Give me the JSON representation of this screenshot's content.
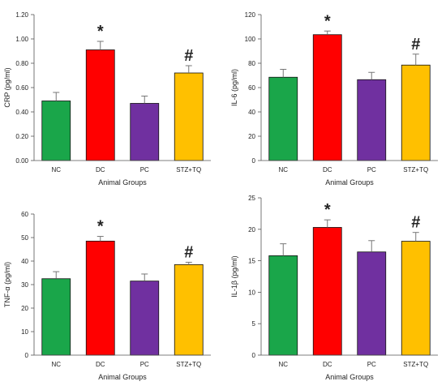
{
  "chart_data": [
    {
      "type": "bar",
      "categories": [
        "NC",
        "DC",
        "PC",
        "STZ+TQ"
      ],
      "values": [
        0.49,
        0.91,
        0.47,
        0.72
      ],
      "errors": [
        0.07,
        0.07,
        0.06,
        0.06
      ],
      "annotations": [
        "",
        "*",
        "",
        "#"
      ],
      "ylim": [
        0,
        1.2
      ],
      "yticks": [
        "0.00",
        "0.20",
        "0.40",
        "0.60",
        "0.80",
        "1.00",
        "1.20"
      ],
      "xlabel": "Animal Groups",
      "ylabel": "CRP (pg/ml)",
      "colors": [
        "#1aa64a",
        "#ff0000",
        "#7030a0",
        "#ffc000"
      ]
    },
    {
      "type": "bar",
      "categories": [
        "NC",
        "DC",
        "PC",
        "STZ+TQ"
      ],
      "values": [
        68.5,
        103.5,
        66.5,
        78.5
      ],
      "errors": [
        6.5,
        3.0,
        6.0,
        9.0
      ],
      "annotations": [
        "",
        "*",
        "",
        "#"
      ],
      "ylim": [
        0,
        120
      ],
      "yticks": [
        "0",
        "20",
        "40",
        "60",
        "80",
        "100",
        "120"
      ],
      "xlabel": "Animal Groups",
      "ylabel": "IL-6 (pg/ml)",
      "colors": [
        "#1aa64a",
        "#ff0000",
        "#7030a0",
        "#ffc000"
      ]
    },
    {
      "type": "bar",
      "categories": [
        "NC",
        "DC",
        "PC",
        "STZ+TQ"
      ],
      "values": [
        32.5,
        48.5,
        31.5,
        38.5
      ],
      "errors": [
        3.0,
        2.0,
        3.0,
        1.0
      ],
      "annotations": [
        "",
        "*",
        "",
        "#"
      ],
      "ylim": [
        0,
        60
      ],
      "yticks": [
        "0",
        "10",
        "20",
        "30",
        "40",
        "50",
        "60"
      ],
      "xlabel": "Animal Groups",
      "ylabel": "TNF-α (pg/ml)",
      "colors": [
        "#1aa64a",
        "#ff0000",
        "#7030a0",
        "#ffc000"
      ]
    },
    {
      "type": "bar",
      "categories": [
        "NC",
        "DC",
        "PC",
        "STZ+TQ"
      ],
      "values": [
        15.8,
        20.3,
        16.4,
        18.1
      ],
      "errors": [
        1.9,
        1.2,
        1.8,
        1.4
      ],
      "annotations": [
        "",
        "*",
        "",
        "#"
      ],
      "ylim": [
        0,
        25
      ],
      "yticks": [
        "0",
        "5",
        "10",
        "15",
        "20",
        "25"
      ],
      "xlabel": "Animal Groups",
      "ylabel": "IL-1β (pg/ml)",
      "colors": [
        "#1aa64a",
        "#ff0000",
        "#7030a0",
        "#ffc000"
      ]
    }
  ]
}
